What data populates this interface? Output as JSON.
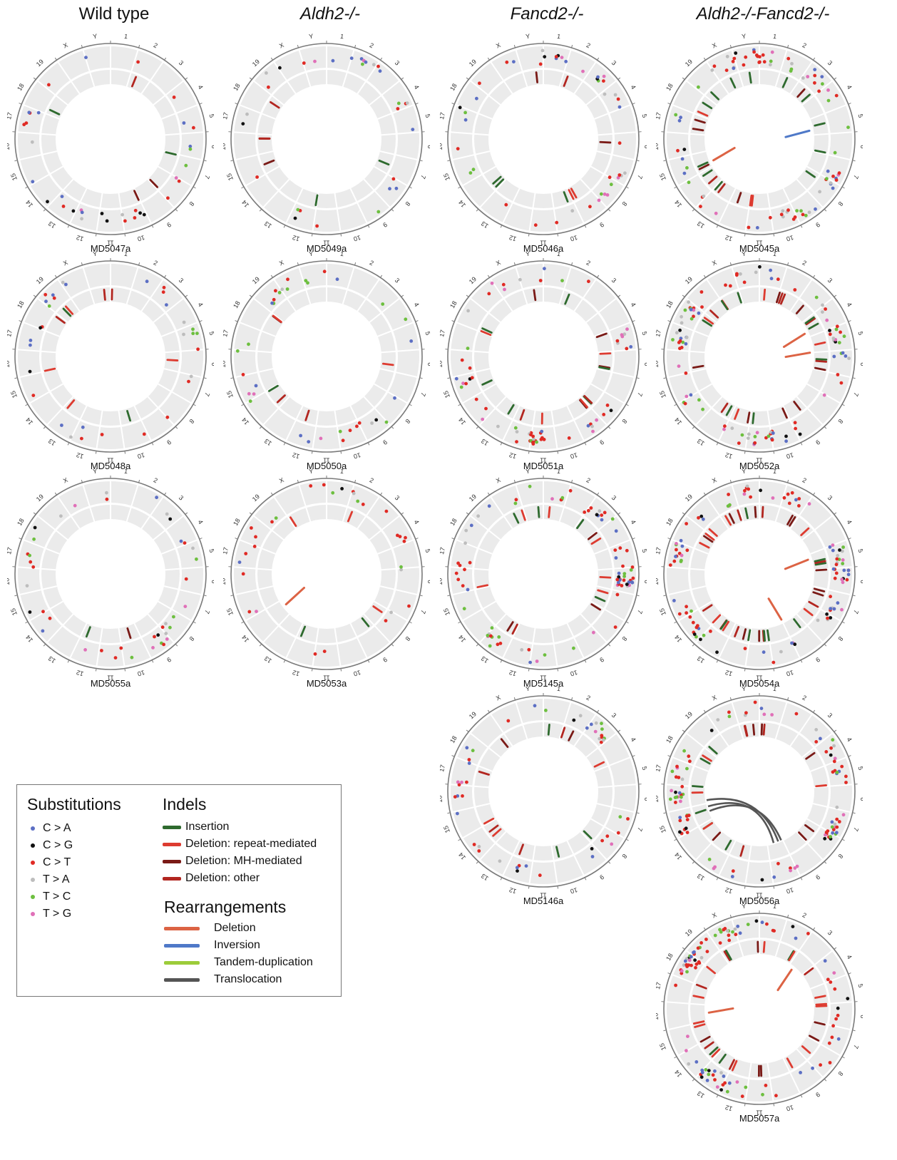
{
  "columns": [
    "Wild type",
    "Aldh2-/-",
    "Fancd2-/-",
    "Aldh2-/-Fancd2-/-"
  ],
  "chromosomes": [
    "1",
    "2",
    "3",
    "4",
    "5",
    "6",
    "7",
    "8",
    "9",
    "10",
    "11",
    "12",
    "13",
    "14",
    "15",
    "16",
    "17",
    "18",
    "19",
    "X",
    "Y"
  ],
  "colors": {
    "C>A": "#5c6fc4",
    "C>G": "#111111",
    "C>T": "#e02a24",
    "T>A": "#bdbdbd",
    "T>C": "#6dbf3f",
    "T>G": "#e070b8",
    "insertion": "#2e6a2e",
    "del_repeat": "#dd3b30",
    "del_mh": "#7a1a16",
    "del_other": "#b22620",
    "rear_deletion": "#dc6344",
    "rear_inversion": "#4f79c8",
    "rear_tandem": "#9ccc3a",
    "rear_translocation": "#555555",
    "track": "#ebebeb",
    "outline": "#7a7a7a"
  },
  "samples": [
    {
      "id": "MD5047a",
      "col": 0,
      "row": 0,
      "subs": 34,
      "indels": 5,
      "rearr": []
    },
    {
      "id": "MD5048a",
      "col": 0,
      "row": 1,
      "subs": 32,
      "indels": 9,
      "rearr": []
    },
    {
      "id": "MD5055a",
      "col": 0,
      "row": 2,
      "subs": 40,
      "indels": 2,
      "rearr": []
    },
    {
      "id": "MD5049a",
      "col": 1,
      "row": 0,
      "subs": 30,
      "indels": 6,
      "rearr": []
    },
    {
      "id": "MD5050a",
      "col": 1,
      "row": 1,
      "subs": 34,
      "indels": 6,
      "rearr": []
    },
    {
      "id": "MD5053a",
      "col": 1,
      "row": 2,
      "subs": 30,
      "indels": 5,
      "rearr": [
        {
          "type": "deletion",
          "a": 13.6,
          "b": 13.9
        }
      ]
    },
    {
      "id": "MD5046a",
      "col": 2,
      "row": 0,
      "subs": 44,
      "indels": 8,
      "rearr": []
    },
    {
      "id": "MD5051a",
      "col": 2,
      "row": 1,
      "subs": 60,
      "indels": 16,
      "rearr": []
    },
    {
      "id": "MD5145a",
      "col": 2,
      "row": 2,
      "subs": 80,
      "indels": 14,
      "rearr": []
    },
    {
      "id": "MD5146a",
      "col": 2,
      "row": 3,
      "subs": 46,
      "indels": 12,
      "rearr": []
    },
    {
      "id": "MD5045a",
      "col": 3,
      "row": 0,
      "subs": 82,
      "indels": 22,
      "rearr": [
        {
          "type": "deletion",
          "a": 14.3,
          "b": 14.6
        },
        {
          "type": "inversion",
          "a": 4.7,
          "b": 5.0
        }
      ]
    },
    {
      "id": "MD5052a",
      "col": 3,
      "row": 1,
      "subs": 96,
      "indels": 26,
      "rearr": [
        {
          "type": "deletion",
          "a": 3.7,
          "b": 4.0
        },
        {
          "type": "deletion",
          "a": 5.0,
          "b": 5.3
        }
      ]
    },
    {
      "id": "MD5054a",
      "col": 3,
      "row": 2,
      "subs": 100,
      "indels": 34,
      "rearr": [
        {
          "type": "deletion",
          "a": 4.3,
          "b": 4.6
        },
        {
          "type": "deletion",
          "a": 9.0,
          "b": 9.3
        }
      ]
    },
    {
      "id": "MD5056a",
      "col": 3,
      "row": 3,
      "subs": 96,
      "indels": 20,
      "rearr": [
        {
          "type": "translocation",
          "a": 14.8,
          "b": 9.6
        },
        {
          "type": "translocation",
          "a": 15.2,
          "b": 9.3
        },
        {
          "type": "translocation",
          "a": 14.5,
          "b": 9.1
        }
      ]
    },
    {
      "id": "MD5057a",
      "col": 3,
      "row": 4,
      "subs": 100,
      "indels": 28,
      "rearr": [
        {
          "type": "deletion",
          "a": 2.3,
          "b": 2.6
        },
        {
          "type": "deletion",
          "a": 15.5,
          "b": 15.8
        }
      ]
    }
  ],
  "legend": {
    "substitutions_title": "Substitutions",
    "substitutions": [
      "C > A",
      "C > G",
      "C > T",
      "T > A",
      "T > C",
      "T > G"
    ],
    "indels_title": "Indels",
    "indels": [
      "Insertion",
      "Deletion: repeat-mediated",
      "Deletion: MH-mediated",
      "Deletion: other"
    ],
    "rearrangements_title": "Rearrangements",
    "rearrangements": [
      "Deletion",
      "Inversion",
      "Tandem-duplication",
      "Translocation"
    ]
  }
}
